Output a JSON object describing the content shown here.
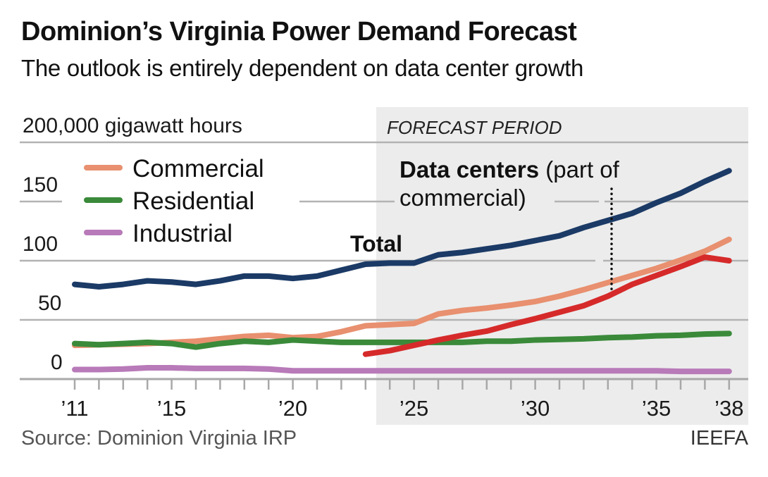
{
  "header": {
    "title": "Dominion’s Virginia Power Demand Forecast",
    "subtitle": "The outlook is entirely dependent on data center growth"
  },
  "footer": {
    "source": "Source: Dominion Virginia IRP",
    "credit": "IEEFA"
  },
  "colors": {
    "total": "#1b3a66",
    "commercial": "#e8906f",
    "residential": "#3a8a3a",
    "industrial": "#b87ab8",
    "data_centers": "#d62a2a",
    "forecast_shade": "#ececec",
    "grid": "#b3b3b3"
  },
  "chart_data": {
    "type": "line",
    "title": "Dominion’s Virginia Power Demand Forecast",
    "subtitle": "The outlook is entirely dependent on data center growth",
    "ylabel": "200,000 gigawatt hours",
    "xlabel": "",
    "ylim": [
      0,
      200
    ],
    "xlim": [
      2011,
      2038
    ],
    "grid": true,
    "y_ticks": [
      0,
      50,
      100,
      150,
      200
    ],
    "y_tick_labels": [
      "0",
      "50",
      "100",
      "150",
      "200,000 gigawatt hours"
    ],
    "x_tick_years": [
      2011,
      2015,
      2020,
      2025,
      2030,
      2035,
      2038
    ],
    "x_tick_labels": [
      "’11",
      "’15",
      "’20",
      "’25",
      "’30",
      "’35",
      "’38"
    ],
    "forecast_period": {
      "label": "FORECAST PERIOD",
      "start": 2023.8,
      "end": 2038.9
    },
    "legend": {
      "position": "top-left",
      "entries": [
        "Commercial",
        "Residential",
        "Industrial"
      ]
    },
    "annotations": {
      "total": "Total",
      "data_centers_bold": "Data centers",
      "data_centers_rest_line1": " (part of",
      "data_centers_rest_line2": "commercial)",
      "data_centers_marker_year": 2033.5
    },
    "x": [
      2011,
      2012,
      2013,
      2014,
      2015,
      2016,
      2017,
      2018,
      2019,
      2020,
      2021,
      2022,
      2023,
      2024,
      2025,
      2026,
      2027,
      2028,
      2029,
      2030,
      2031,
      2032,
      2033,
      2034,
      2035,
      2036,
      2037,
      2038
    ],
    "series": [
      {
        "key": "total",
        "name": "Total",
        "values": [
          80,
          78,
          80,
          83,
          82,
          80,
          83,
          87,
          87,
          85,
          87,
          92,
          97,
          98,
          98,
          105,
          107,
          110,
          113,
          117,
          121,
          128,
          134,
          140,
          149,
          157,
          167,
          176
        ]
      },
      {
        "key": "commercial",
        "name": "Commercial",
        "values": [
          28.5,
          29,
          29.5,
          30,
          31,
          32,
          34,
          36,
          37,
          35,
          36,
          40,
          45,
          46,
          47,
          55,
          58,
          60,
          62.5,
          65.5,
          70,
          75.5,
          81.5,
          87.5,
          93.5,
          100.5,
          108,
          118
        ]
      },
      {
        "key": "residential",
        "name": "Residential",
        "values": [
          30,
          29,
          30,
          31,
          30,
          27,
          30,
          32,
          31,
          33,
          32,
          31,
          31,
          31,
          31,
          31,
          31,
          32,
          32,
          33,
          33.5,
          34,
          35,
          35.5,
          36.5,
          37,
          38,
          38.5
        ]
      },
      {
        "key": "industrial",
        "name": "Industrial",
        "values": [
          8,
          8,
          8.5,
          9.5,
          9.5,
          9,
          9,
          9,
          8.5,
          7,
          7,
          7,
          7,
          7,
          7,
          7,
          7,
          7,
          7,
          7,
          7,
          7,
          7,
          7,
          7,
          6.5,
          6.5,
          6.5
        ]
      },
      {
        "key": "data_centers",
        "name": "Data centers (part of commercial)",
        "x_start": 2023,
        "values": [
          null,
          null,
          null,
          null,
          null,
          null,
          null,
          null,
          null,
          null,
          null,
          null,
          21,
          24,
          28.5,
          33,
          37,
          40.5,
          46,
          51,
          56.5,
          62,
          70,
          80,
          87.5,
          95,
          103,
          100
        ]
      }
    ]
  }
}
